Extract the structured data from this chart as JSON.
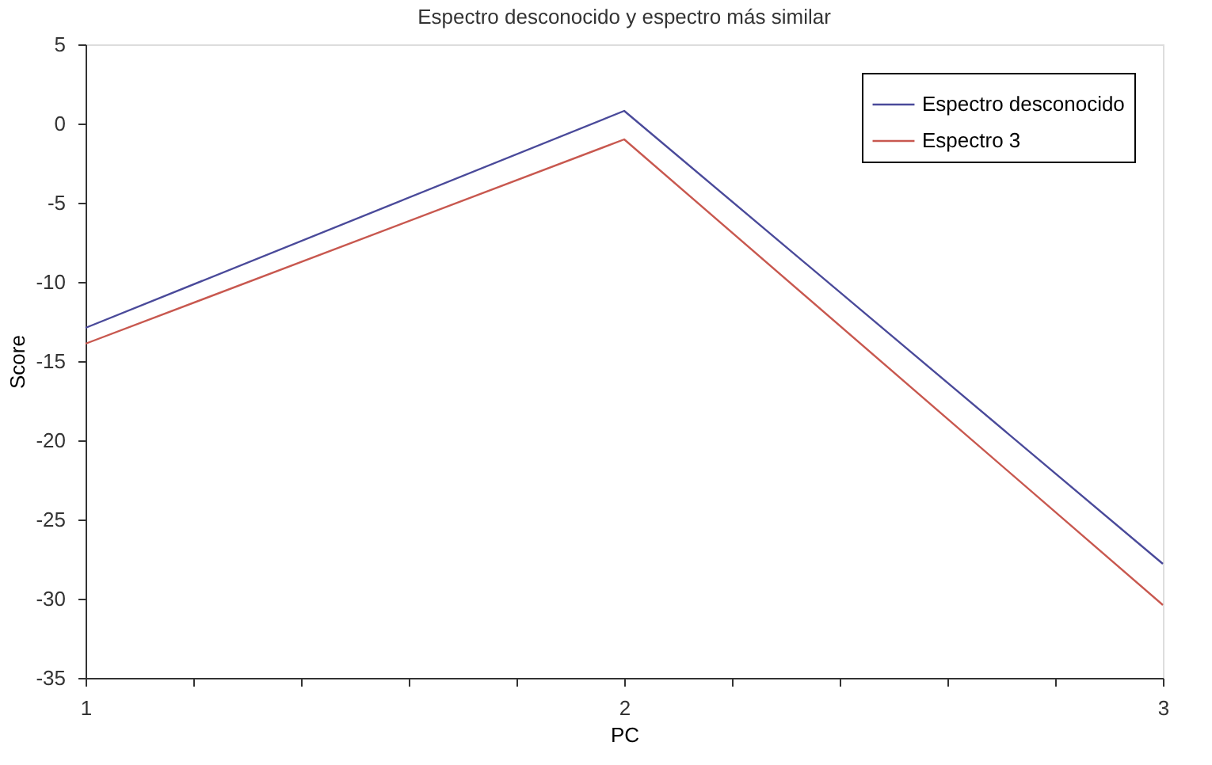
{
  "chart_data": {
    "type": "line",
    "title": "Espectro desconocido y espectro más similar",
    "xlabel": "PC",
    "ylabel": "Score",
    "x": [
      1,
      2,
      3
    ],
    "series": [
      {
        "name": "Espectro desconocido",
        "color": "#4a4a9a",
        "values": [
          -12.9,
          0.8,
          -27.8
        ]
      },
      {
        "name": "Espectro 3",
        "color": "#c8584f",
        "values": [
          -13.9,
          -1,
          -30.4
        ]
      }
    ],
    "xlim": [
      1,
      3
    ],
    "xticks": [
      1,
      {
        "value": 1.2,
        "label": null
      },
      {
        "value": 1.4,
        "label": null
      },
      {
        "value": 1.6,
        "label": null
      },
      {
        "value": 1.8,
        "label": null
      },
      2,
      {
        "value": 2.2,
        "label": null
      },
      {
        "value": 2.4,
        "label": null
      },
      {
        "value": 2.6,
        "label": null
      },
      {
        "value": 2.8,
        "label": null
      },
      3
    ],
    "ylim": [
      -35,
      5
    ],
    "yticks": [
      -35,
      -30,
      -25,
      -20,
      -15,
      -10,
      -5,
      0,
      5
    ],
    "grid": false,
    "legend": "top right",
    "marker": "none",
    "line_style": "solid"
  }
}
